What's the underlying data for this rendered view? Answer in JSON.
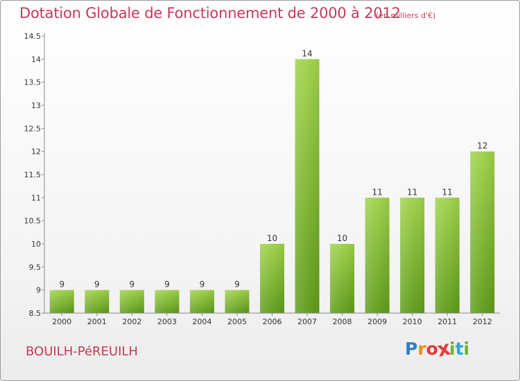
{
  "title": "Dotation Globale de Fonctionnement de 2000 à 2012",
  "subtitle": "(en milliers d'€)",
  "commune": "BOUILH-PéREUILH",
  "logo": {
    "letters": [
      "P",
      "r",
      "o",
      "x",
      "i",
      "t",
      "i"
    ],
    "colors": [
      "#2f7fc4",
      "#f08a1c",
      "#e53b3b",
      "#e53b3b",
      "#6bb52b",
      "#2fa6d6",
      "#6bb52b"
    ]
  },
  "colors": {
    "bar_top": "#9fd24a",
    "bar_bottom": "#5f9b19",
    "title": "#c8385a"
  },
  "chart_data": {
    "type": "bar",
    "categories": [
      "2000",
      "2001",
      "2002",
      "2003",
      "2004",
      "2005",
      "2006",
      "2007",
      "2008",
      "2009",
      "2010",
      "2011",
      "2012"
    ],
    "values": [
      9,
      9,
      9,
      9,
      9,
      9,
      10,
      14,
      10,
      11,
      11,
      11,
      12
    ],
    "data_labels": [
      "9",
      "9",
      "9",
      "9",
      "9",
      "9",
      "10",
      "14",
      "10",
      "11",
      "11",
      "11",
      "12"
    ],
    "title": "Dotation Globale de Fonctionnement de 2000 à 2012",
    "subtitle": "(en milliers d'€)",
    "xlabel": "",
    "ylabel": "",
    "ylim": [
      8.5,
      14.5
    ],
    "yticks": [
      8.5,
      9,
      9.5,
      10,
      10.5,
      11,
      11.5,
      12,
      12.5,
      13,
      13.5,
      14,
      14.5
    ],
    "ytick_labels": [
      "8.5",
      "9",
      "9.5",
      "10",
      "10.5",
      "11",
      "11.5",
      "12",
      "12.5",
      "13",
      "13.5",
      "14",
      "14.5"
    ],
    "grid": false,
    "legend": "none"
  }
}
